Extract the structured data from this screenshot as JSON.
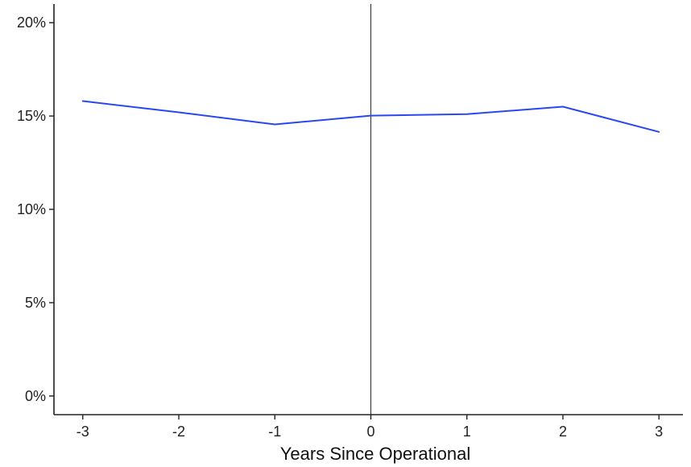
{
  "chart_data": {
    "type": "line",
    "title": "",
    "xlabel": "Years Since Operational",
    "ylabel": "",
    "x": [
      -3,
      -2,
      -1,
      0,
      1,
      2,
      3
    ],
    "x_tick_labels": [
      "-3",
      "-2",
      "-1",
      "0",
      "1",
      "2",
      "3"
    ],
    "y_ticks": [
      0,
      5,
      10,
      15,
      20
    ],
    "y_tick_labels": [
      "0%",
      "5%",
      "10%",
      "15%",
      "20%"
    ],
    "xlim": [
      -3.3,
      3.25
    ],
    "ylim": [
      -1,
      21
    ],
    "reference_line_x": 0,
    "grid": false,
    "series": [
      {
        "color": "#2a48f0",
        "values": [
          15.8,
          15.2,
          14.55,
          15.02,
          15.1,
          15.5,
          14.15
        ]
      }
    ]
  }
}
